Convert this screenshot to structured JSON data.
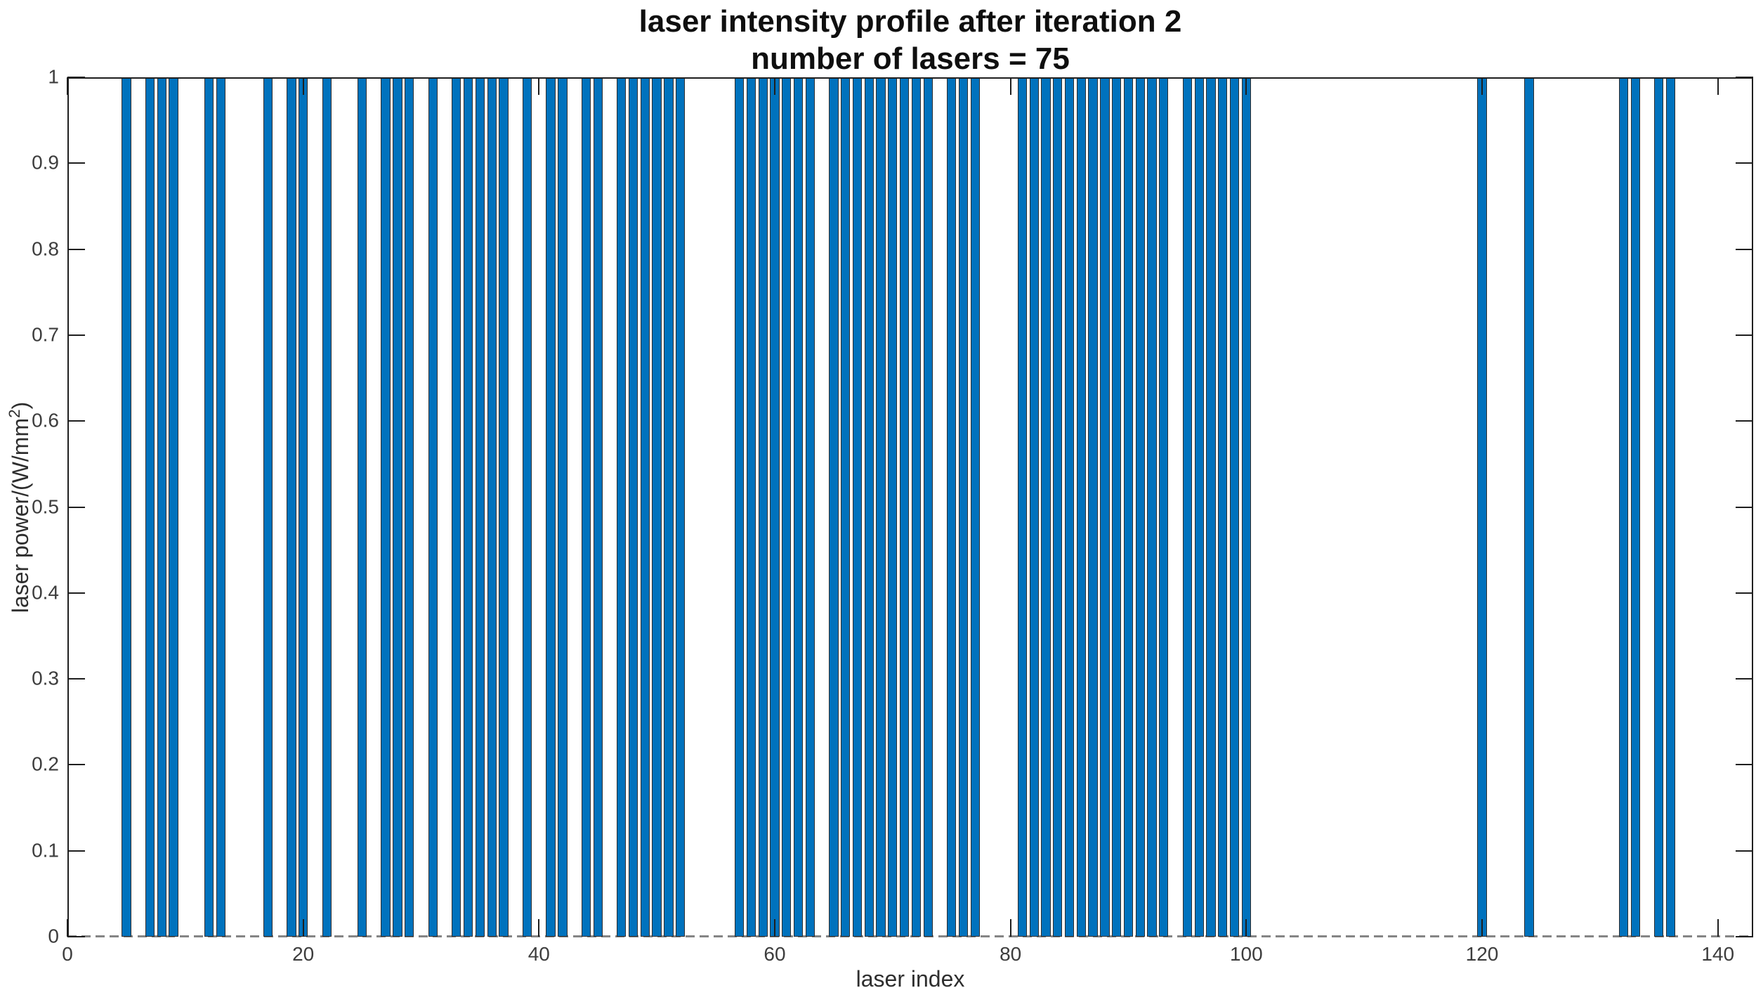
{
  "figure": {
    "title_line1": "laser intensity profile after iteration 2",
    "title_line2": "number of lasers = 75",
    "xlabel": "laser index",
    "ylabel_main": "laser power/(W/mm",
    "ylabel_sup": "2",
    "ylabel_close": ")"
  },
  "chart_data": {
    "type": "bar",
    "title": "laser intensity profile after iteration 2",
    "subtitle": "number of lasers = 75",
    "xlabel": "laser index",
    "ylabel": "laser power/(W/mm^2)",
    "num_lasers": 75,
    "x": [
      5,
      7,
      8,
      9,
      12,
      13,
      17,
      19,
      20,
      22,
      25,
      27,
      28,
      29,
      31,
      33,
      34,
      35,
      36,
      37,
      39,
      41,
      42,
      44,
      45,
      47,
      48,
      49,
      50,
      51,
      52,
      57,
      58,
      59,
      60,
      61,
      62,
      63,
      65,
      66,
      67,
      68,
      69,
      70,
      71,
      72,
      73,
      75,
      76,
      77,
      81,
      82,
      83,
      84,
      85,
      86,
      87,
      88,
      89,
      90,
      91,
      92,
      93,
      95,
      96,
      97,
      98,
      99,
      100,
      120,
      124,
      132,
      133,
      135,
      136
    ],
    "values": [
      1,
      1,
      1,
      1,
      1,
      1,
      1,
      1,
      1,
      1,
      1,
      1,
      1,
      1,
      1,
      1,
      1,
      1,
      1,
      1,
      1,
      1,
      1,
      1,
      1,
      1,
      1,
      1,
      1,
      1,
      1,
      1,
      1,
      1,
      1,
      1,
      1,
      1,
      1,
      1,
      1,
      1,
      1,
      1,
      1,
      1,
      1,
      1,
      1,
      1,
      1,
      1,
      1,
      1,
      1,
      1,
      1,
      1,
      1,
      1,
      1,
      1,
      1,
      1,
      1,
      1,
      1,
      1,
      1,
      1,
      1,
      1,
      1,
      1,
      1
    ],
    "bar_width": 0.8,
    "xlim": [
      0,
      143
    ],
    "ylim": [
      0,
      1
    ],
    "xticks": [
      0,
      20,
      40,
      60,
      80,
      100,
      120,
      140
    ],
    "yticks": [
      0,
      0.1,
      0.2,
      0.3,
      0.4,
      0.5,
      0.6,
      0.7,
      0.8,
      0.9,
      1
    ],
    "grid": false,
    "legend": null,
    "box": true,
    "tick_direction": "in",
    "colors": {
      "bar_fill": "#0072BD",
      "bar_edge": "#2e2e2e",
      "axis": "#1f1f1f",
      "tick_label": "#3d3d3d",
      "baseline_dash": "#858585",
      "title": "#0f0f0f"
    }
  }
}
